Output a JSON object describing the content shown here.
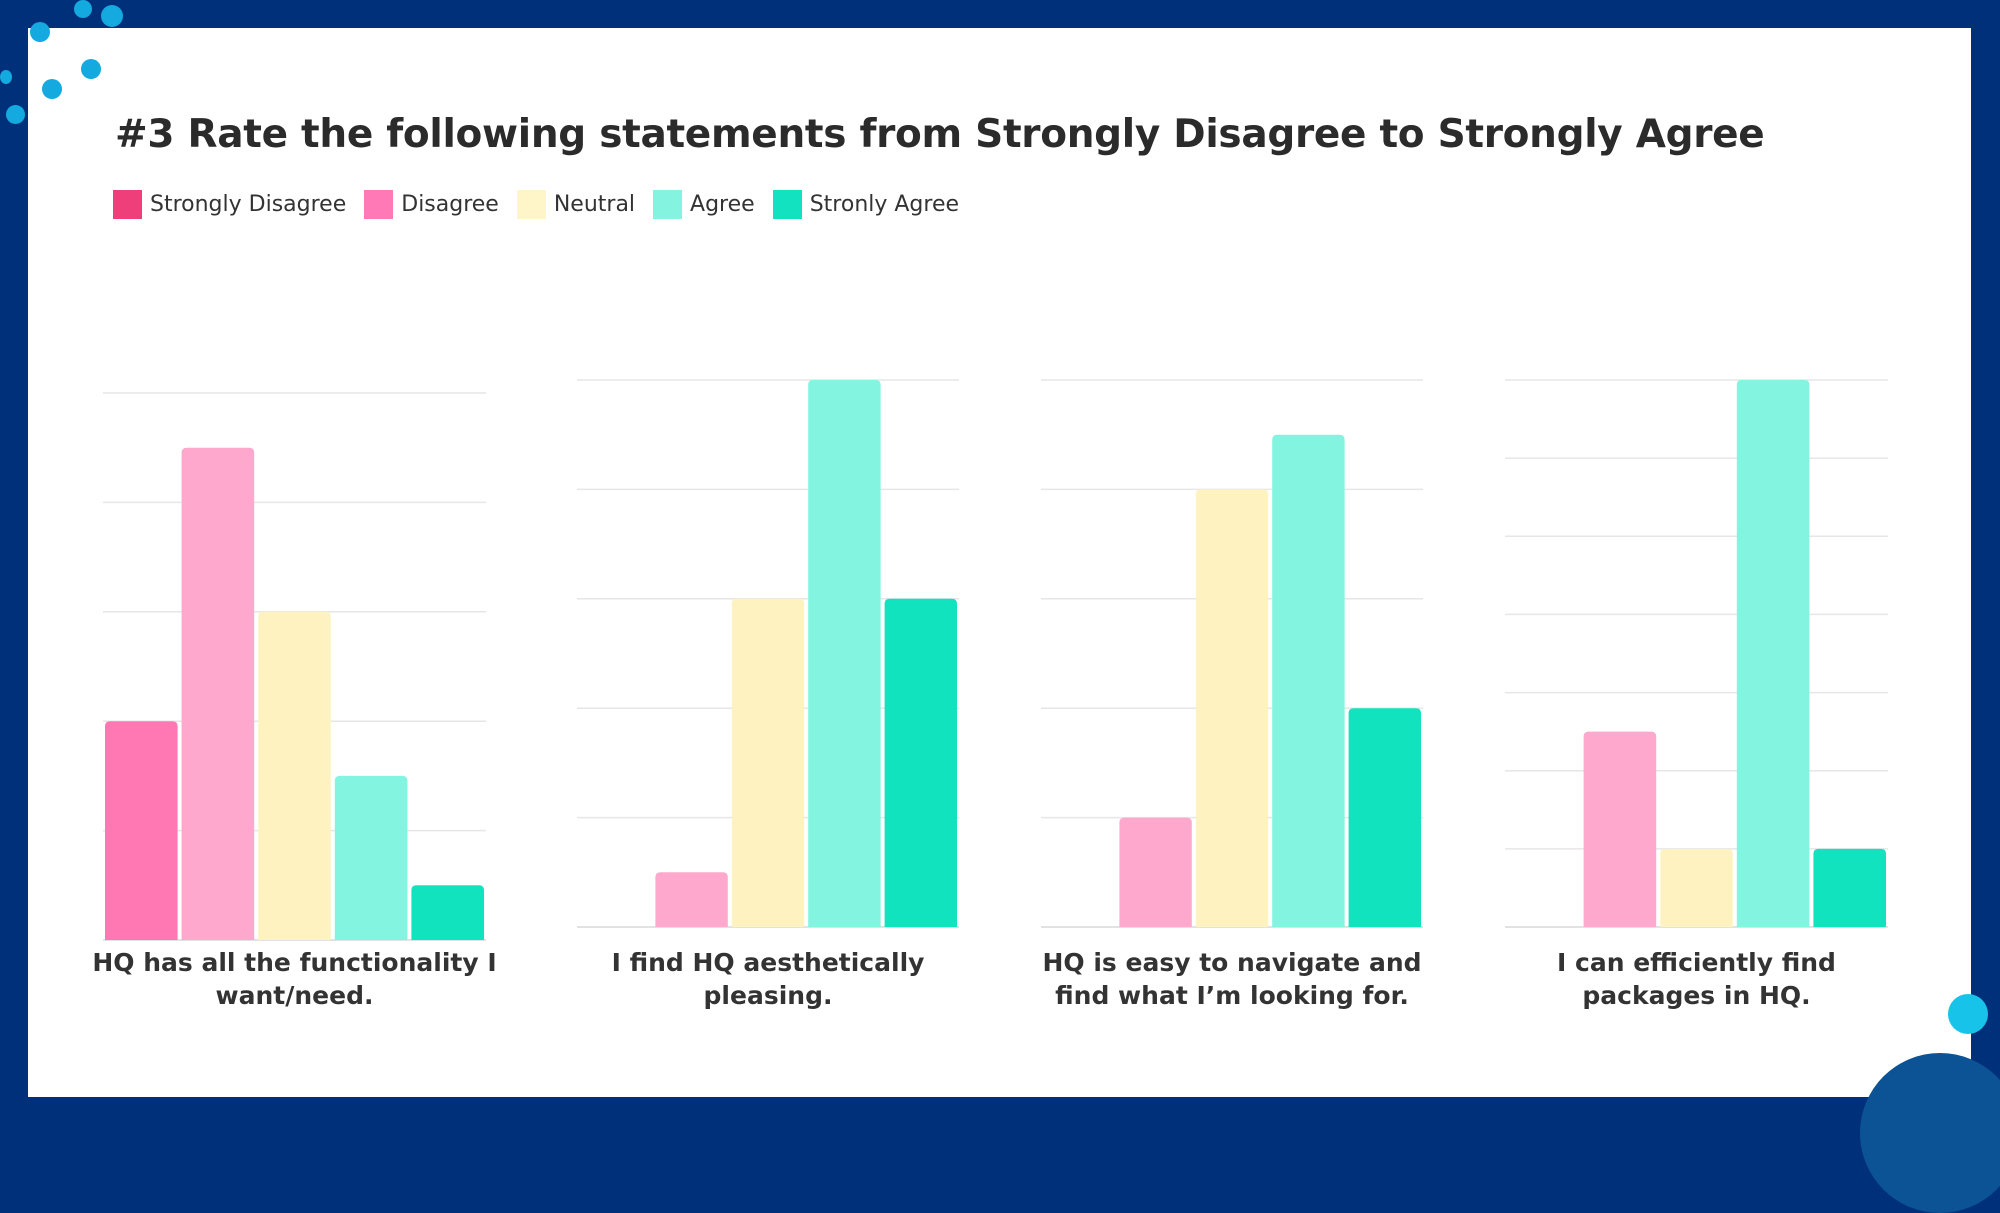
{
  "title": "#3 Rate the following statements from Strongly Disagree to Strongly Agree",
  "legend": [
    {
      "label": "Strongly Disagree",
      "color": "#ef3f7b"
    },
    {
      "label": "Disagree",
      "color": "#ff79b6"
    },
    {
      "label": "Neutral",
      "color": "#fef5c8"
    },
    {
      "label": "Agree",
      "color": "#84f3df"
    },
    {
      "label": "Stronly Agree",
      "color": "#12e2bf"
    }
  ],
  "chart_data": [
    {
      "type": "bar",
      "title": "HQ has all the functionality I want/need.",
      "categories": [
        "Strongly Disagree",
        "Disagree",
        "Neutral",
        "Agree",
        "Stronly Agree"
      ],
      "values": [
        4,
        9,
        6,
        3,
        1
      ],
      "colors": [
        "#ff78b4",
        "#fda8cc",
        "#fef3c0",
        "#83f4df",
        "#11e3bf"
      ],
      "ylim": [
        0,
        10
      ],
      "grid_step": 2,
      "grid": true
    },
    {
      "type": "bar",
      "title": "I find HQ aesthetically pleasing.",
      "categories": [
        "Strongly Disagree",
        "Disagree",
        "Neutral",
        "Agree",
        "Stronly Agree"
      ],
      "values": [
        0,
        1,
        6,
        10,
        6
      ],
      "colors": [
        "#ff78b4",
        "#fda8cc",
        "#fef3c0",
        "#83f4df",
        "#11e3bf"
      ],
      "ylim": [
        0,
        10
      ],
      "grid_step": 2,
      "grid": true
    },
    {
      "type": "bar",
      "title": "HQ is easy to navigate and find what I’m looking for.",
      "categories": [
        "Strongly Disagree",
        "Disagree",
        "Neutral",
        "Agree",
        "Stronly Agree"
      ],
      "values": [
        0,
        2,
        8,
        9,
        4
      ],
      "colors": [
        "#ff78b4",
        "#fda8cc",
        "#fef3c0",
        "#83f4df",
        "#11e3bf"
      ],
      "ylim": [
        0,
        10
      ],
      "grid_step": 2,
      "grid": true
    },
    {
      "type": "bar",
      "title": "I can efficiently find packages in HQ.",
      "categories": [
        "Strongly Disagree",
        "Disagree",
        "Neutral",
        "Agree",
        "Stronly Agree"
      ],
      "values": [
        0,
        5,
        2,
        14,
        2
      ],
      "colors": [
        "#ff78b4",
        "#fda8cc",
        "#fef3c0",
        "#83f4df",
        "#11e3bf"
      ],
      "ylim": [
        0,
        14
      ],
      "grid_step": 2,
      "grid": true
    }
  ]
}
